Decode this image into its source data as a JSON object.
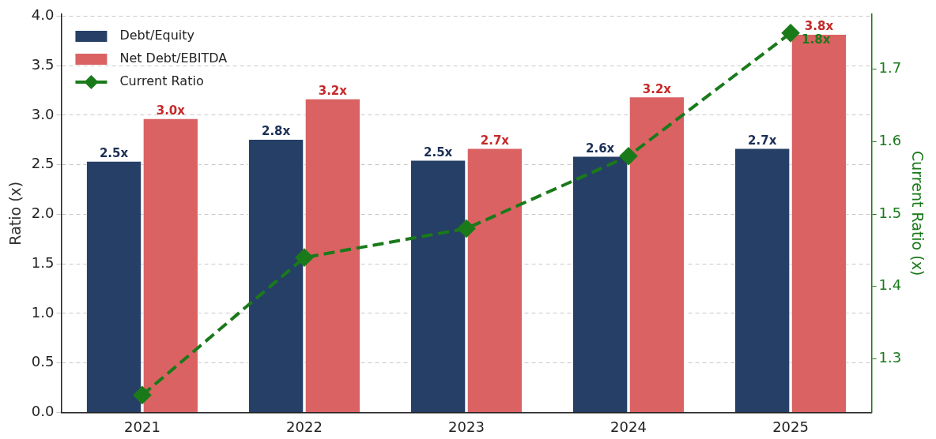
{
  "chart_data": {
    "type": "bar",
    "categories": [
      "2021",
      "2022",
      "2023",
      "2024",
      "2025"
    ],
    "ylabel": "Ratio (x)",
    "y2label": "Current Ratio (x)",
    "ylim": [
      0,
      4.02
    ],
    "yticks": [
      {
        "value": 0,
        "label": "0.0"
      },
      0.5,
      {
        "value": 1,
        "label": "1.0"
      },
      1.5,
      {
        "value": 2,
        "label": "2.0"
      },
      2.5,
      {
        "value": 3,
        "label": "3.0"
      },
      3.5,
      {
        "value": 4,
        "label": "4.0"
      }
    ],
    "y2lim": [
      1.226,
      1.776
    ],
    "y2ticks": [
      1.3,
      1.4,
      1.5,
      1.6,
      1.7
    ],
    "grid": "y",
    "legend": "top left",
    "series": [
      {
        "name": "Debt/Equity",
        "color": "#263f66",
        "values": [
          2.54,
          2.76,
          2.55,
          2.59,
          2.67
        ],
        "value_labels": [
          "2.5x",
          "2.8x",
          "2.5x",
          "2.6x",
          "2.7x"
        ]
      },
      {
        "name": "Net Debt/EBITDA",
        "color": "#da6263",
        "values": [
          2.97,
          3.17,
          2.67,
          3.19,
          3.82
        ],
        "value_labels": [
          "3.0x",
          "3.2x",
          "2.7x",
          "3.2x",
          "3.8x"
        ]
      },
      {
        "name": "Current Ratio",
        "type": "line",
        "axis": "y2",
        "color": "#1a7a1a",
        "marker": "diamond",
        "line_style": "dashed",
        "values": [
          1.25,
          1.44,
          1.48,
          1.58,
          1.75
        ],
        "value_labels": [
          null,
          null,
          null,
          null,
          "1.8x"
        ]
      }
    ]
  }
}
